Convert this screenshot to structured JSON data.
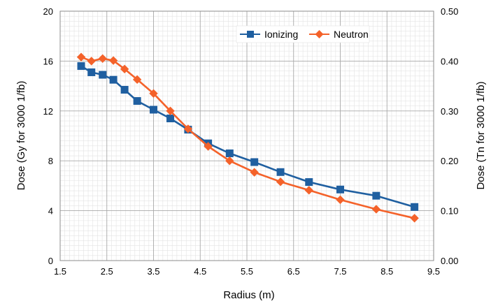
{
  "chart_data": {
    "type": "line",
    "title": "",
    "xlabel": "Radius (m)",
    "ylabel_left": "Dose (Gy for 3000 1/fb)",
    "ylabel_right": "Dose (Tn for 3000 1/fb)",
    "xlim": [
      1.5,
      9.5
    ],
    "ylim_left": [
      0,
      20
    ],
    "ylim_right": [
      0,
      0.5
    ],
    "x_ticks": [
      "1.5",
      "2.5",
      "3.5",
      "4.5",
      "5.5",
      "6.5",
      "7.5",
      "8.5",
      "9.5"
    ],
    "y_left_ticks": [
      "0",
      "4",
      "8",
      "12",
      "16",
      "20"
    ],
    "y_right_ticks": [
      "0.00",
      "0.10",
      "0.20",
      "0.30",
      "0.40",
      "0.50"
    ],
    "grid": true,
    "legend_position": "top-right",
    "series": [
      {
        "name": "Ionizing",
        "axis": "left",
        "color": "#1f5fa0",
        "marker": "square",
        "x": [
          1.95,
          2.17,
          2.41,
          2.64,
          2.88,
          3.15,
          3.5,
          3.86,
          4.24,
          4.67,
          5.13,
          5.66,
          6.22,
          6.83,
          7.5,
          8.27,
          9.09
        ],
        "values": [
          15.6,
          15.1,
          14.9,
          14.5,
          13.7,
          12.8,
          12.1,
          11.4,
          10.5,
          9.4,
          8.6,
          7.9,
          7.1,
          6.3,
          5.7,
          5.2,
          4.3
        ]
      },
      {
        "name": "Neutron",
        "axis": "right",
        "color": "#f4622a",
        "marker": "diamond",
        "x": [
          1.95,
          2.17,
          2.41,
          2.64,
          2.88,
          3.15,
          3.5,
          3.86,
          4.24,
          4.67,
          5.13,
          5.66,
          6.22,
          6.83,
          7.5,
          8.27,
          9.09
        ],
        "values": [
          0.408,
          0.4,
          0.405,
          0.401,
          0.384,
          0.363,
          0.335,
          0.3,
          0.264,
          0.229,
          0.2,
          0.177,
          0.158,
          0.141,
          0.122,
          0.103,
          0.085
        ]
      }
    ]
  }
}
